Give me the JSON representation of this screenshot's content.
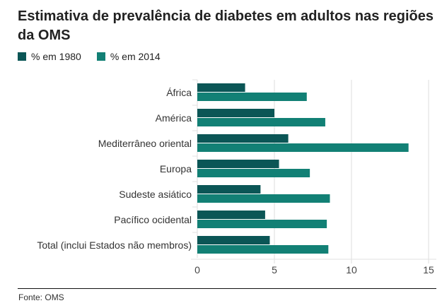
{
  "chart_data": {
    "type": "bar",
    "orientation": "horizontal",
    "title": "Estimativa de prevalência de diabetes em adultos nas regiões da OMS",
    "xlabel": "",
    "ylabel": "",
    "categories": [
      "África",
      "América",
      "Mediterrâneo oriental",
      "Europa",
      "Sudeste asiático",
      "Pacífico ocidental",
      "Total (inclui Estados não membros)"
    ],
    "series": [
      {
        "name": "% em 1980",
        "color": "#0b5656",
        "values": [
          3.1,
          5.0,
          5.9,
          5.3,
          4.1,
          4.4,
          4.7
        ]
      },
      {
        "name": "% em 2014",
        "color": "#128075",
        "values": [
          7.1,
          8.3,
          13.7,
          7.3,
          8.6,
          8.4,
          8.5
        ]
      }
    ],
    "xlim": [
      0,
      15
    ],
    "xticks": [
      0,
      5,
      10,
      15
    ],
    "xtick_labels": [
      "0",
      "5",
      "10",
      "15"
    ],
    "grid": true,
    "legend_position": "top-left",
    "source": "Fonte: OMS"
  }
}
